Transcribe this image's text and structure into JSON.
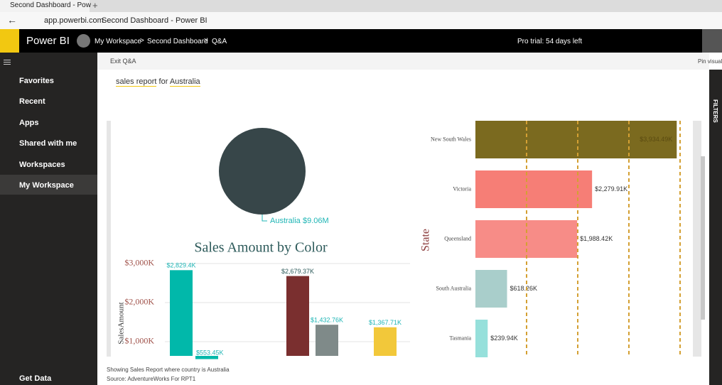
{
  "browser": {
    "tab_title": "Second Dashboard - Pow",
    "url": "app.powerbi.com",
    "page_title": "Second Dashboard - Power BI"
  },
  "header": {
    "app": "Power BI",
    "breadcrumb": [
      "My Workspace",
      "Second Dashboard",
      "Q&A"
    ],
    "trial": "Pro trial: 54 days left"
  },
  "nav": {
    "items": [
      "Favorites",
      "Recent",
      "Apps",
      "Shared with me",
      "Workspaces",
      "My Workspace"
    ],
    "footer": "Get Data"
  },
  "qa": {
    "exit": "Exit Q&A",
    "pin": "Pin visual",
    "query": [
      "sales report",
      "for",
      "Australia"
    ],
    "filters": "FILTERS",
    "note": "Showing Sales Report where country is Australia",
    "source": "Source: AdventureWorks For RPT1"
  },
  "chart_data": [
    {
      "type": "pie",
      "categories": [
        "Australia"
      ],
      "values": [
        9.06
      ],
      "value_labels": [
        "$9.06M"
      ],
      "color": "#374649"
    },
    {
      "type": "column",
      "title": "Sales Amount by Color",
      "y_label": "SalesAmount",
      "categories": [
        null,
        null,
        null,
        null,
        null
      ],
      "values": [
        2829.4,
        553.45,
        2679.37,
        1432.76,
        1367.71
      ],
      "value_labels": [
        "$2,829.4K",
        "$553.45K",
        "$2,679.37K",
        "$1,432.76K",
        "$1,367.71K"
      ],
      "colors": [
        "#01b8aa",
        "#01b8aa",
        "#7a2f2f",
        "#7f8a89",
        "#f2c83a"
      ],
      "ylim": [
        636,
        3090
      ],
      "yticks": [
        {
          "value": 1000,
          "label": "$1,000K"
        },
        {
          "value": 2000,
          "label": "$2,000K"
        },
        {
          "value": 3000,
          "label": "$3,000K"
        }
      ],
      "grid": true
    },
    {
      "type": "hbar",
      "y_label": "State",
      "categories": [
        "New South Wales",
        "Victoria",
        "Queensland",
        "South Australia",
        "Tasmania"
      ],
      "values": [
        3934.49,
        2279.91,
        1988.42,
        618.26,
        239.94
      ],
      "value_labels": [
        "$3,934.49K",
        "$2,279.91K",
        "$1,988.42K",
        "$618.26K",
        "$239.94K"
      ],
      "colors": [
        "#7b6a1f",
        "#f67e76",
        "#f78c87",
        "#a9cecb",
        "#96e0db"
      ],
      "xlim": [
        0,
        4250
      ],
      "xticks": [
        1000,
        2000,
        3000,
        4000
      ],
      "grid": true
    }
  ]
}
